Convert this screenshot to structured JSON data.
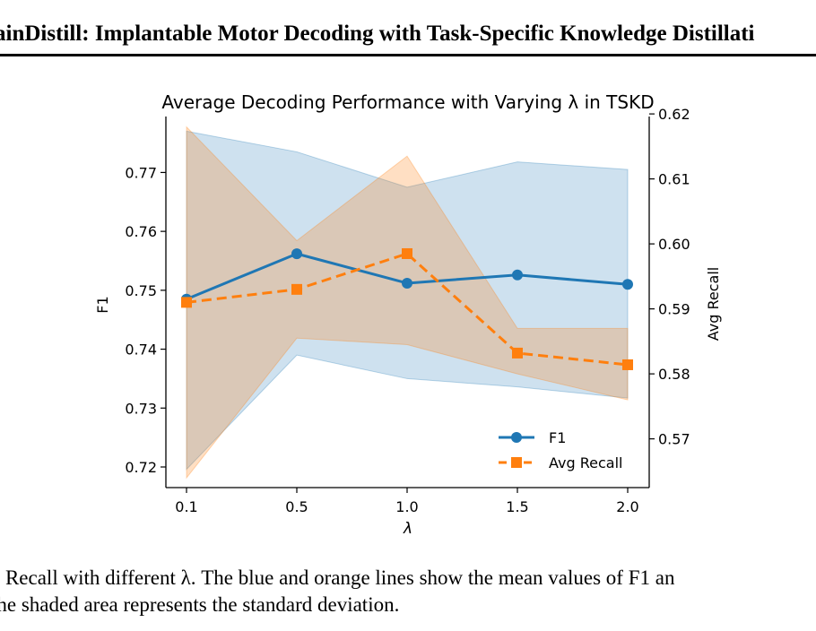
{
  "header": {
    "title": "ainDistill: Implantable Motor Decoding with Task-Specific Knowledge Distillati"
  },
  "caption": {
    "line1": "e Recall with different λ. The blue and orange lines show the mean values of F1 an",
    "line2": "the shaded area represents the standard deviation."
  },
  "chart_data": {
    "type": "line",
    "title": "Average Decoding Performance with Varying λ in TSKD",
    "xlabel": "λ",
    "ylabel": "F1",
    "y2label": "Avg Recall",
    "categories": [
      "0.1",
      "0.5",
      "1.0",
      "1.5",
      "2.0"
    ],
    "ylim": [
      0.7165,
      0.7795
    ],
    "y2lim": [
      0.5625,
      0.6196
    ],
    "yticks": [
      "0.72",
      "0.73",
      "0.74",
      "0.75",
      "0.76",
      "0.77"
    ],
    "y2ticks": [
      "0.57",
      "0.58",
      "0.59",
      "0.60",
      "0.61",
      "0.62"
    ],
    "grid": false,
    "legend_position": "lower-right",
    "series": [
      {
        "name": "F1",
        "axis": "left",
        "color": "#1f77b4",
        "line_style": "solid",
        "marker": "circle",
        "values": [
          0.7485,
          0.7562,
          0.7512,
          0.7526,
          0.751
        ],
        "band_upper": [
          0.777,
          0.7735,
          0.7675,
          0.7718,
          0.7705
        ],
        "band_lower": [
          0.7196,
          0.739,
          0.735,
          0.7336,
          0.7317
        ]
      },
      {
        "name": "Avg Recall",
        "axis": "right",
        "color": "#ff7f0e",
        "line_style": "dashed",
        "marker": "square",
        "values": [
          0.591,
          0.593,
          0.5985,
          0.5832,
          0.5814
        ],
        "band_upper": [
          0.618,
          0.6005,
          0.6135,
          0.587,
          0.587
        ],
        "band_lower": [
          0.564,
          0.5855,
          0.5845,
          0.58,
          0.576
        ]
      }
    ]
  }
}
